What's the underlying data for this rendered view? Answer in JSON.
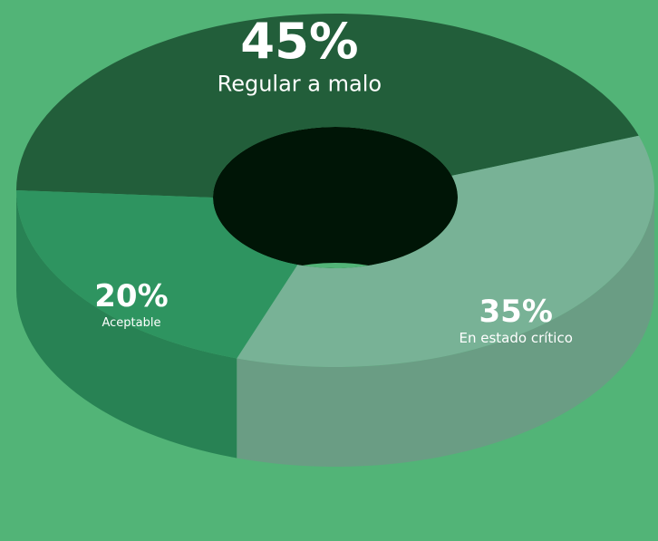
{
  "chart_data": {
    "type": "pie",
    "donut": true,
    "categories": [
      "Regular a malo",
      "En estado crítico",
      "Aceptable"
    ],
    "values": [
      45,
      35,
      20
    ],
    "value_labels": [
      "45%",
      "35%",
      "20%"
    ],
    "colors": [
      "#225e3a",
      "#78b296",
      "#2e9460"
    ]
  }
}
